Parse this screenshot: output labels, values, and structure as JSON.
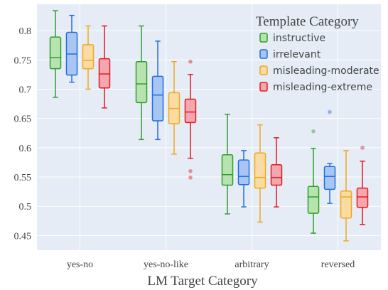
{
  "chart_data": {
    "type": "box",
    "xlabel": "LM Target Category",
    "ylabel": "",
    "categories": [
      "yes-no",
      "yes-no-like",
      "arbitrary",
      "reversed"
    ],
    "ylim": [
      0.425,
      0.845
    ],
    "yticks": [
      "0.45",
      "0.5",
      "0.55",
      "0.6",
      "0.65",
      "0.7",
      "0.75",
      "0.8"
    ],
    "ytick_values": [
      0.45,
      0.5,
      0.55,
      0.6,
      0.65,
      0.7,
      0.75,
      0.8
    ],
    "grid": true,
    "background": "#e5ecf6",
    "legend": {
      "title": "Template Category",
      "placement": "top-right"
    },
    "series": [
      {
        "name": "instructive",
        "stroke": "#2ca02c",
        "fill": "#b6e3ae",
        "boxes": [
          {
            "category": "yes-no",
            "min": 0.686,
            "q1": 0.735,
            "median": 0.754,
            "q3": 0.789,
            "max": 0.834,
            "outliers": []
          },
          {
            "category": "yes-no-like",
            "min": 0.614,
            "q1": 0.677,
            "median": 0.709,
            "q3": 0.747,
            "max": 0.808,
            "outliers": []
          },
          {
            "category": "arbitrary",
            "min": 0.487,
            "q1": 0.536,
            "median": 0.554,
            "q3": 0.588,
            "max": 0.657,
            "outliers": []
          },
          {
            "category": "reversed",
            "min": 0.454,
            "q1": 0.488,
            "median": 0.516,
            "q3": 0.534,
            "max": 0.599,
            "outliers": [
              0.628
            ]
          }
        ]
      },
      {
        "name": "irrelevant",
        "stroke": "#1f6fe0",
        "fill": "#a9c6f3",
        "boxes": [
          {
            "category": "yes-no",
            "min": 0.712,
            "q1": 0.724,
            "median": 0.76,
            "q3": 0.797,
            "max": 0.826,
            "outliers": []
          },
          {
            "category": "yes-no-like",
            "min": 0.614,
            "q1": 0.646,
            "median": 0.69,
            "q3": 0.722,
            "max": 0.782,
            "outliers": []
          },
          {
            "category": "arbitrary",
            "min": 0.499,
            "q1": 0.537,
            "median": 0.551,
            "q3": 0.579,
            "max": 0.595,
            "outliers": []
          },
          {
            "category": "reversed",
            "min": 0.505,
            "q1": 0.529,
            "median": 0.551,
            "q3": 0.568,
            "max": 0.573,
            "outliers": [
              0.661
            ]
          }
        ]
      },
      {
        "name": "misleading-moderate",
        "stroke": "#f2a81d",
        "fill": "#f8dca3",
        "boxes": [
          {
            "category": "yes-no",
            "min": 0.7,
            "q1": 0.735,
            "median": 0.749,
            "q3": 0.776,
            "max": 0.808,
            "outliers": []
          },
          {
            "category": "yes-no-like",
            "min": 0.589,
            "q1": 0.641,
            "median": 0.667,
            "q3": 0.694,
            "max": 0.747,
            "outliers": []
          },
          {
            "category": "arbitrary",
            "min": 0.473,
            "q1": 0.531,
            "median": 0.549,
            "q3": 0.591,
            "max": 0.639,
            "outliers": []
          },
          {
            "category": "reversed",
            "min": 0.441,
            "q1": 0.48,
            "median": 0.516,
            "q3": 0.526,
            "max": 0.595,
            "outliers": []
          }
        ]
      },
      {
        "name": "misleading-extreme",
        "stroke": "#e31a1c",
        "fill": "#f5a6ae",
        "boxes": [
          {
            "category": "yes-no",
            "min": 0.668,
            "q1": 0.702,
            "median": 0.726,
            "q3": 0.752,
            "max": 0.808,
            "outliers": []
          },
          {
            "category": "yes-no-like",
            "min": 0.582,
            "q1": 0.643,
            "median": 0.661,
            "q3": 0.683,
            "max": 0.725,
            "outliers": [
              0.747,
              0.56,
              0.549
            ]
          },
          {
            "category": "arbitrary",
            "min": 0.499,
            "q1": 0.536,
            "median": 0.549,
            "q3": 0.571,
            "max": 0.617,
            "outliers": []
          },
          {
            "category": "reversed",
            "min": 0.469,
            "q1": 0.498,
            "median": 0.516,
            "q3": 0.531,
            "max": 0.577,
            "outliers": [
              0.6
            ]
          }
        ]
      }
    ]
  }
}
